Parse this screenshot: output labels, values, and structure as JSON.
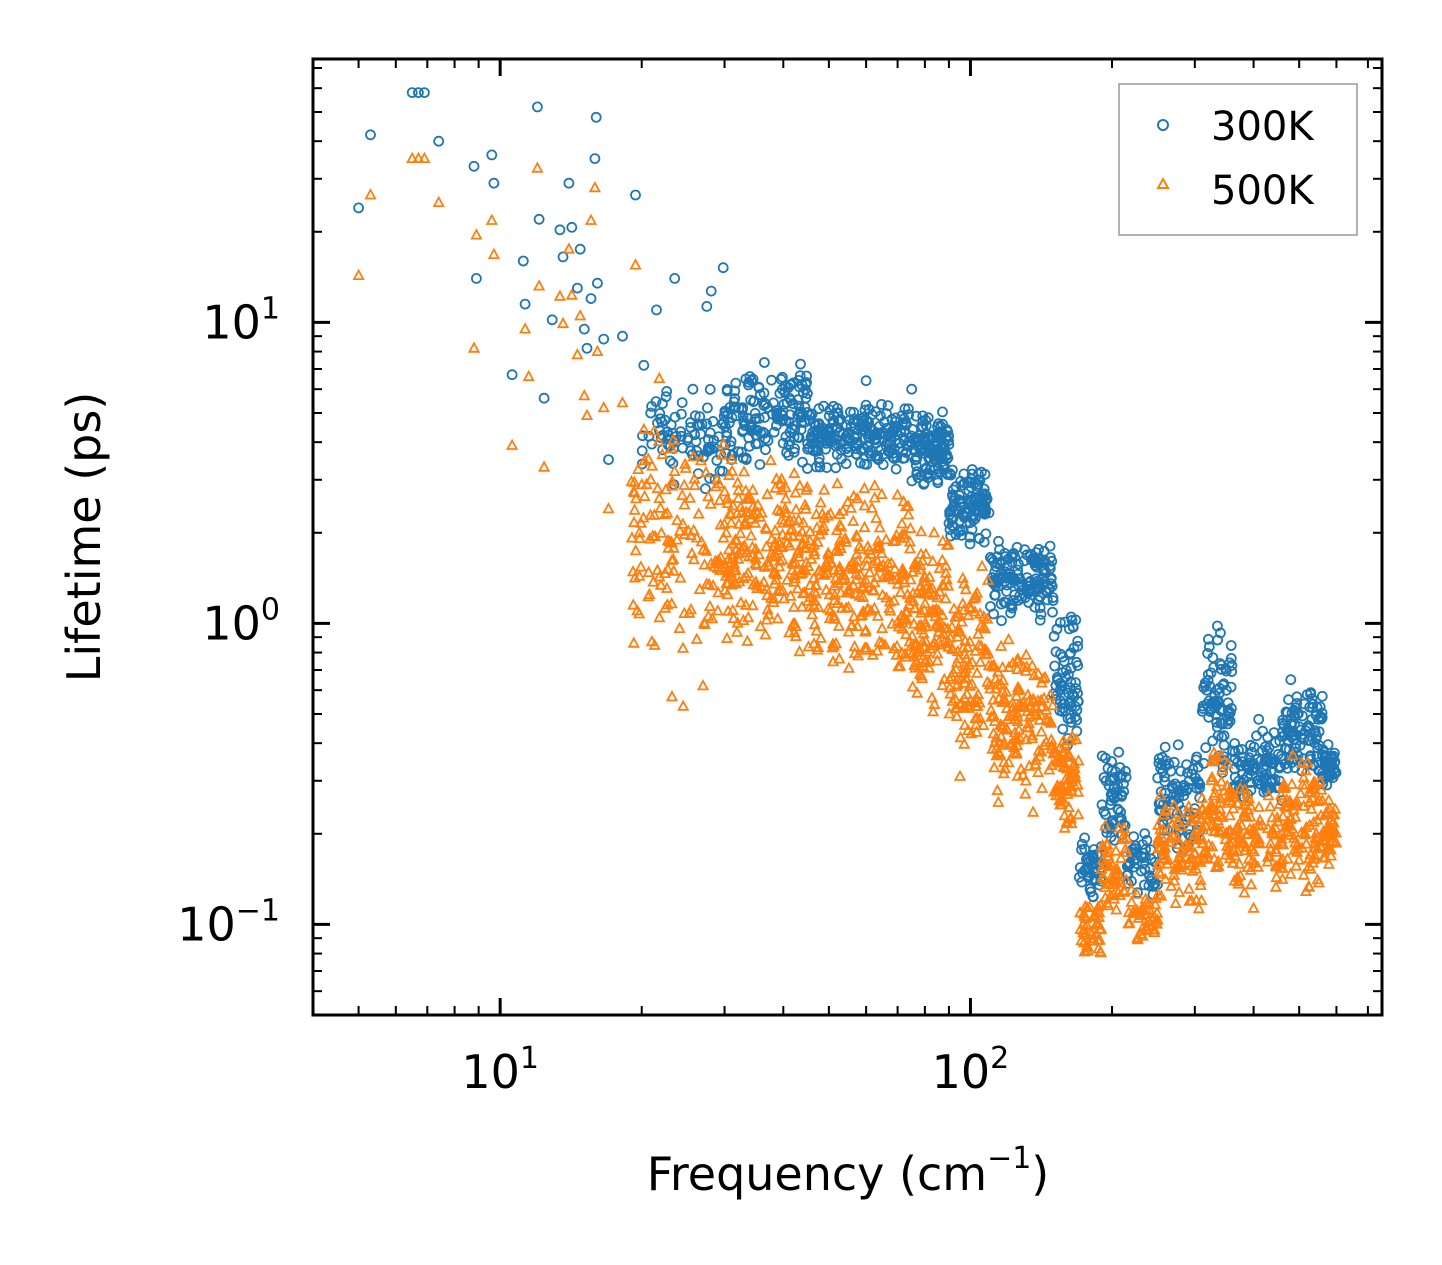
{
  "chart_data": {
    "type": "scatter",
    "title": "",
    "xlabel": {
      "base": "Frequency (cm",
      "sup": "−1",
      "tail": ")"
    },
    "ylabel": "Lifetime (ps)",
    "xscale": "log",
    "yscale": "log",
    "xlim": [
      4.0,
      750
    ],
    "ylim": [
      0.05,
      75
    ],
    "x_ticks": [
      {
        "value": 10,
        "base": "10",
        "exp": "1"
      },
      {
        "value": 100,
        "base": "10",
        "exp": "2"
      }
    ],
    "y_ticks": [
      {
        "value": 0.1,
        "base": "10",
        "exp": "−1"
      },
      {
        "value": 1,
        "base": "10",
        "exp": "0"
      },
      {
        "value": 10,
        "base": "10",
        "exp": "1"
      }
    ],
    "legend_position": "top-right",
    "series": [
      {
        "name": "300K",
        "marker": "circle",
        "color": "#1f77b4",
        "points": [
          [
            5.0,
            24
          ],
          [
            5.3,
            42
          ],
          [
            6.5,
            58
          ],
          [
            6.7,
            58
          ],
          [
            6.9,
            58
          ],
          [
            7.4,
            40
          ],
          [
            8.8,
            33
          ],
          [
            8.9,
            14
          ],
          [
            9.6,
            36
          ],
          [
            9.7,
            29
          ],
          [
            10.6,
            6.7
          ],
          [
            11.2,
            16
          ],
          [
            11.3,
            11.5
          ],
          [
            12.0,
            52
          ],
          [
            12.1,
            22
          ],
          [
            12.4,
            5.6
          ],
          [
            12.9,
            10.2
          ],
          [
            13.4,
            20.3
          ],
          [
            13.6,
            16.5
          ],
          [
            14.0,
            29
          ],
          [
            14.2,
            20.7
          ],
          [
            14.6,
            13
          ],
          [
            14.8,
            17.5
          ],
          [
            15.1,
            9.5
          ],
          [
            15.3,
            8.2
          ],
          [
            15.6,
            12
          ],
          [
            15.9,
            35
          ],
          [
            16.0,
            48
          ],
          [
            16.1,
            13.5
          ],
          [
            16.6,
            8.8
          ],
          [
            17.0,
            3.5
          ],
          [
            18.2,
            9.0
          ],
          [
            19.4,
            26.5
          ],
          [
            20.2,
            7.2
          ],
          [
            20.9,
            5.0
          ],
          [
            21.5,
            11.0
          ],
          [
            22.6,
            5.9
          ],
          [
            23.5,
            14
          ],
          [
            25.7,
            6.0
          ],
          [
            27.5,
            11.3
          ],
          [
            28.1,
            12.7
          ],
          [
            29.8,
            15.2
          ],
          [
            45,
            5.8
          ],
          [
            60,
            6.4
          ],
          [
            75,
            6.0
          ],
          [
            335,
            0.98
          ],
          [
            340,
            0.93
          ],
          [
            410,
            0.48
          ],
          [
            480,
            0.65
          ],
          [
            520,
            0.58
          ]
        ],
        "bands": [
          [
            20,
            30,
            2.6,
            6.6,
            80
          ],
          [
            30,
            45,
            3.2,
            7.5,
            160
          ],
          [
            45,
            75,
            3.2,
            5.6,
            220
          ],
          [
            75,
            90,
            2.8,
            5.2,
            120
          ],
          [
            90,
            110,
            1.8,
            3.4,
            110
          ],
          [
            110,
            150,
            1.0,
            1.9,
            150
          ],
          [
            150,
            170,
            0.35,
            1.1,
            70
          ],
          [
            170,
            190,
            0.12,
            0.2,
            45
          ],
          [
            190,
            215,
            0.17,
            0.4,
            55
          ],
          [
            215,
            250,
            0.12,
            0.21,
            45
          ],
          [
            250,
            310,
            0.16,
            0.42,
            90
          ],
          [
            310,
            360,
            0.3,
            0.95,
            80
          ],
          [
            360,
            460,
            0.25,
            0.45,
            100
          ],
          [
            460,
            560,
            0.3,
            0.63,
            100
          ],
          [
            560,
            600,
            0.28,
            0.42,
            45
          ]
        ]
      },
      {
        "name": "500K",
        "marker": "triangle",
        "color": "#ff7f0e",
        "points": [
          [
            5.0,
            14.3
          ],
          [
            5.3,
            26.5
          ],
          [
            6.5,
            35
          ],
          [
            6.7,
            35
          ],
          [
            6.9,
            35
          ],
          [
            7.4,
            25
          ],
          [
            8.8,
            8.2
          ],
          [
            8.9,
            19.5
          ],
          [
            9.6,
            21.8
          ],
          [
            9.7,
            16.8
          ],
          [
            10.6,
            3.9
          ],
          [
            11.3,
            9.5
          ],
          [
            11.5,
            6.6
          ],
          [
            12.0,
            32.5
          ],
          [
            12.1,
            13.2
          ],
          [
            12.4,
            3.3
          ],
          [
            13.4,
            12.2
          ],
          [
            13.6,
            9.9
          ],
          [
            14.0,
            17.5
          ],
          [
            14.2,
            12.3
          ],
          [
            14.6,
            7.8
          ],
          [
            14.8,
            10.5
          ],
          [
            15.1,
            5.7
          ],
          [
            15.3,
            4.9
          ],
          [
            15.6,
            21.8
          ],
          [
            15.9,
            28
          ],
          [
            16.1,
            8.0
          ],
          [
            16.6,
            5.2
          ],
          [
            17.0,
            2.4
          ],
          [
            18.2,
            5.4
          ],
          [
            19.4,
            15.5
          ],
          [
            20.2,
            4.4
          ],
          [
            20.9,
            3.0
          ],
          [
            21.8,
            6.5
          ],
          [
            23.2,
            0.57
          ],
          [
            24.5,
            0.53
          ],
          [
            27.0,
            0.62
          ],
          [
            85,
            0.75
          ],
          [
            95,
            0.31
          ],
          [
            220,
            0.13
          ],
          [
            310,
            0.12
          ],
          [
            400,
            0.113
          ]
        ],
        "bands": [
          [
            19,
            30,
            0.7,
            5.0,
            140
          ],
          [
            30,
            45,
            0.75,
            3.8,
            220
          ],
          [
            45,
            75,
            0.65,
            3.0,
            260
          ],
          [
            75,
            90,
            0.5,
            2.3,
            120
          ],
          [
            90,
            110,
            0.35,
            1.6,
            110
          ],
          [
            110,
            150,
            0.23,
            0.95,
            150
          ],
          [
            150,
            170,
            0.18,
            0.45,
            70
          ],
          [
            170,
            190,
            0.075,
            0.12,
            45
          ],
          [
            190,
            215,
            0.11,
            0.22,
            55
          ],
          [
            215,
            250,
            0.085,
            0.13,
            45
          ],
          [
            250,
            310,
            0.11,
            0.27,
            90
          ],
          [
            310,
            360,
            0.13,
            0.42,
            80
          ],
          [
            360,
            460,
            0.12,
            0.3,
            100
          ],
          [
            460,
            560,
            0.12,
            0.38,
            100
          ],
          [
            560,
            600,
            0.15,
            0.27,
            45
          ]
        ]
      }
    ]
  }
}
